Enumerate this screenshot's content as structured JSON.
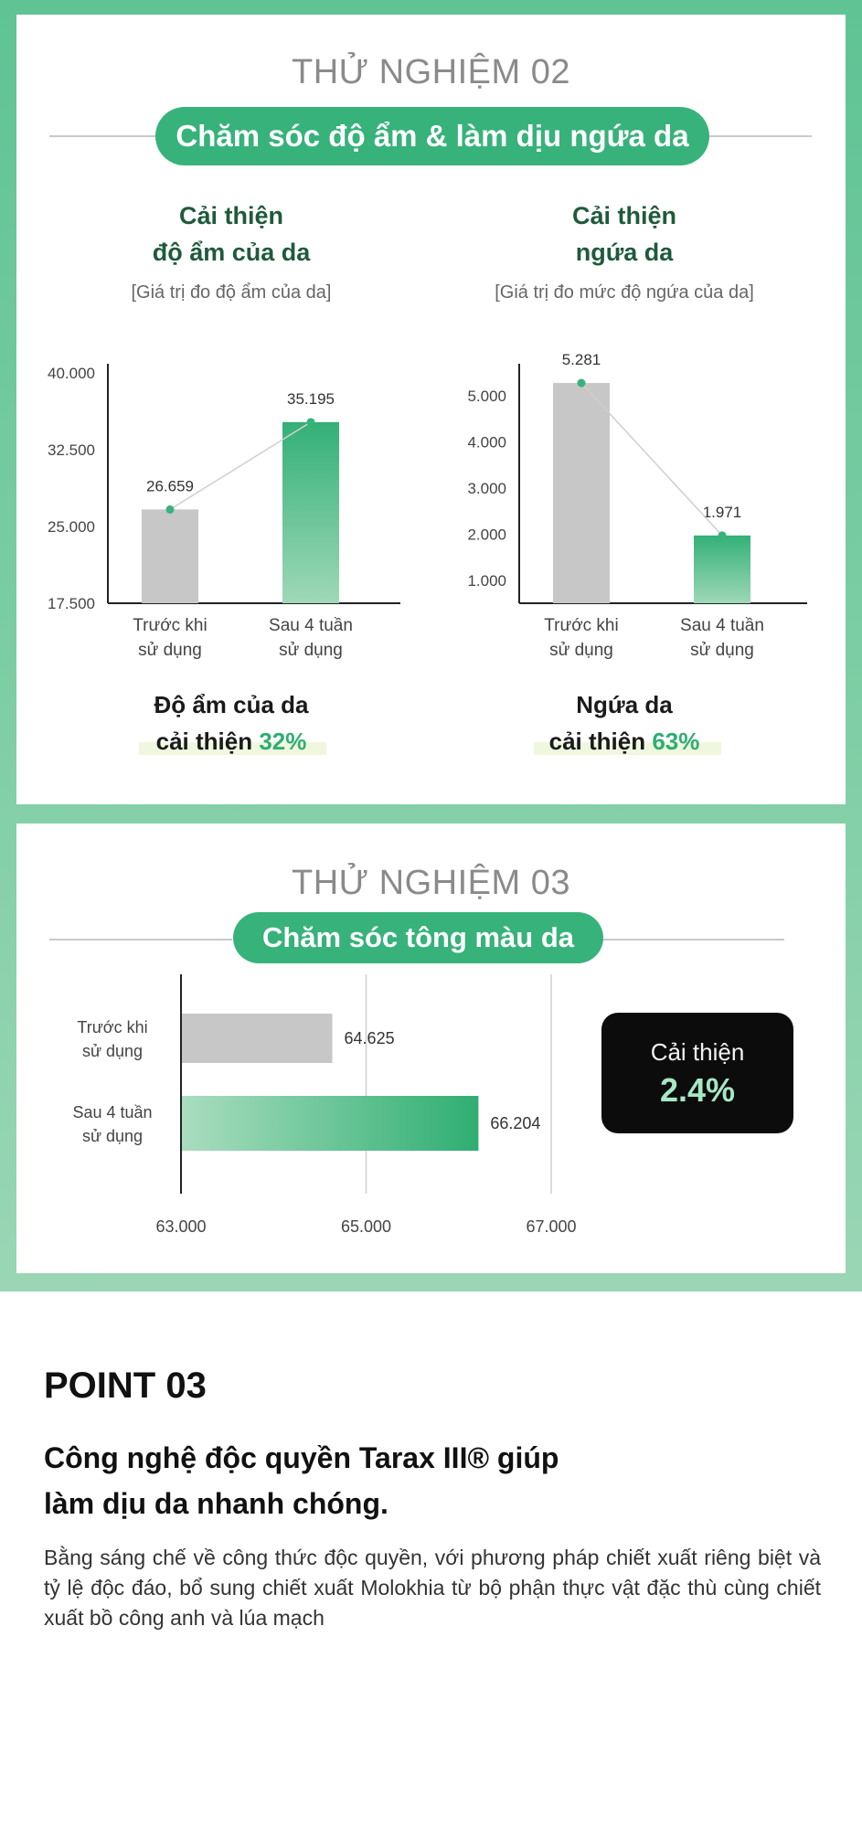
{
  "test02": {
    "title": "THỬ NGHIỆM 02",
    "pill": "Chăm sóc độ ẩm & làm dịu ngứa da",
    "left": {
      "title_line1": "Cải thiện",
      "title_line2": "độ ẩm của da",
      "subtitle": "[Giá trị đo độ ẩm của da]",
      "result_line1": "Độ ẩm của da",
      "result_line2_prefix": "cải thiện",
      "result_line2_value": "32%"
    },
    "right": {
      "title_line1": "Cải thiện",
      "title_line2": "ngứa da",
      "subtitle": "[Giá trị đo mức độ ngứa của da]",
      "result_line1": "Ngứa da",
      "result_line2_prefix": "cải thiện",
      "result_line2_value": "63%"
    }
  },
  "test03": {
    "title": "THỬ NGHIỆM 03",
    "pill": "Chăm sóc tông màu da",
    "badge_label": "Cải thiện",
    "badge_value": "2.4%"
  },
  "chart_data": [
    {
      "type": "bar",
      "categories": [
        "Trước khi\nsử dụng",
        "Sau 4 tuần\nsử dụng"
      ],
      "values": [
        26659,
        35195
      ],
      "value_labels": [
        "26.659",
        "35.195"
      ],
      "yticks": [
        "40.000",
        "32.500",
        "25.000",
        "17.500"
      ],
      "ytick_values": [
        40000,
        32500,
        25000,
        17500
      ],
      "ylim": [
        17500,
        40000
      ],
      "colors": [
        "#c7c7c7",
        "#37b27b"
      ]
    },
    {
      "type": "bar",
      "categories": [
        "Trước khi\nsử dụng",
        "Sau 4 tuần\nsử dụng"
      ],
      "values": [
        5281,
        1971
      ],
      "value_labels": [
        "5.281",
        "1.971"
      ],
      "yticks": [
        "5.000",
        "4.000",
        "3.000",
        "2.000",
        "1.000"
      ],
      "ytick_values": [
        5000,
        4000,
        3000,
        2000,
        1000
      ],
      "ylim": [
        500,
        5500
      ],
      "colors": [
        "#c7c7c7",
        "#37b27b"
      ]
    },
    {
      "type": "bar",
      "orientation": "horizontal",
      "categories": [
        "Trước khi\nsử dụng",
        "Sau 4 tuần\nsử dụng"
      ],
      "values": [
        64625,
        66204
      ],
      "value_labels": [
        "64.625",
        "66.204"
      ],
      "xticks": [
        "63.000",
        "65.000",
        "67.000"
      ],
      "xtick_values": [
        63000,
        65000,
        67000
      ],
      "xlim": [
        63000,
        67000
      ],
      "colors": [
        "#c7c7c7",
        "#37b27b"
      ]
    }
  ],
  "point": {
    "title": "POINT 03",
    "heading_line1": "Công nghệ độc quyền Tarax III® giúp",
    "heading_line2": "làm dịu da nhanh chóng.",
    "body": "Bằng sáng chế về công thức độc quyền, với phương pháp chiết xuất riêng biệt và tỷ lệ độc đáo, bổ sung chiết xuất Molokhia từ bộ phận thực vật đặc thù cùng chiết xuất bồ công anh và lúa mạch"
  }
}
